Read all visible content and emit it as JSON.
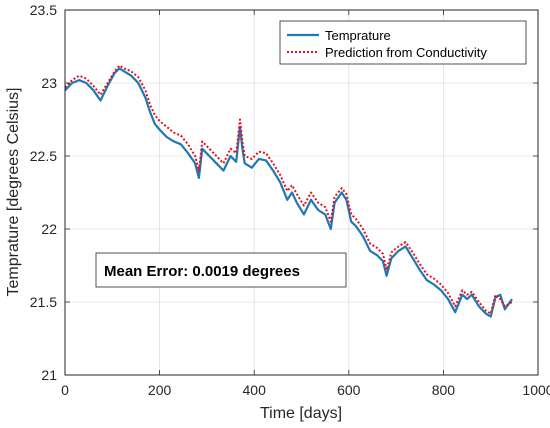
{
  "chart_data": {
    "type": "line",
    "title": "",
    "xlabel": "Time [days]",
    "ylabel": "Temprature [degrees Celsius]",
    "xlim": [
      0,
      1000
    ],
    "ylim": [
      21,
      23.5
    ],
    "xticks": [
      "0",
      "200",
      "400",
      "600",
      "800",
      "1000"
    ],
    "yticks": [
      "21",
      "21.5",
      "22",
      "22.5",
      "23",
      "23.5"
    ],
    "grid": true,
    "legend_position": "top-right",
    "series": [
      {
        "name": "Temprature",
        "color": "#1f77b4",
        "style": "solid",
        "x": [
          0,
          15,
          30,
          45,
          60,
          75,
          90,
          105,
          115,
          125,
          140,
          155,
          170,
          180,
          190,
          200,
          215,
          230,
          245,
          260,
          275,
          283,
          290,
          305,
          320,
          335,
          350,
          362,
          370,
          375,
          380,
          395,
          410,
          425,
          440,
          455,
          470,
          480,
          490,
          505,
          520,
          535,
          550,
          562,
          570,
          585,
          595,
          605,
          615,
          630,
          645,
          660,
          672,
          680,
          690,
          705,
          720,
          735,
          750,
          765,
          780,
          795,
          810,
          825,
          840,
          850,
          860,
          875,
          890,
          900,
          910,
          920,
          930,
          945
        ],
        "y": [
          22.95,
          23.0,
          23.02,
          23.0,
          22.95,
          22.88,
          22.98,
          23.07,
          23.1,
          23.08,
          23.05,
          23.0,
          22.9,
          22.8,
          22.72,
          22.68,
          22.63,
          22.6,
          22.58,
          22.52,
          22.45,
          22.35,
          22.55,
          22.5,
          22.45,
          22.4,
          22.5,
          22.46,
          22.7,
          22.55,
          22.45,
          22.42,
          22.48,
          22.47,
          22.4,
          22.32,
          22.2,
          22.25,
          22.18,
          22.1,
          22.2,
          22.13,
          22.1,
          22.0,
          22.18,
          22.25,
          22.2,
          22.05,
          22.02,
          21.95,
          21.85,
          21.82,
          21.78,
          21.68,
          21.8,
          21.85,
          21.88,
          21.8,
          21.72,
          21.65,
          21.62,
          21.58,
          21.52,
          21.43,
          21.55,
          21.52,
          21.55,
          21.47,
          21.42,
          21.4,
          21.53,
          21.55,
          21.45,
          21.52
        ]
      },
      {
        "name": "Prediction from Conductivity",
        "color": "#e8101e",
        "style": "dotted",
        "x": [
          0,
          15,
          30,
          45,
          60,
          75,
          90,
          105,
          115,
          125,
          140,
          155,
          170,
          180,
          190,
          200,
          215,
          230,
          245,
          260,
          275,
          283,
          290,
          305,
          320,
          335,
          350,
          362,
          370,
          375,
          380,
          395,
          410,
          425,
          440,
          455,
          470,
          480,
          490,
          505,
          520,
          535,
          550,
          562,
          570,
          585,
          595,
          605,
          615,
          630,
          645,
          660,
          672,
          680,
          690,
          705,
          720,
          735,
          750,
          765,
          780,
          795,
          810,
          825,
          840,
          850,
          860,
          875,
          890,
          900,
          910,
          920,
          930,
          945
        ],
        "y": [
          22.97,
          23.02,
          23.05,
          23.03,
          22.98,
          22.92,
          23.0,
          23.08,
          23.12,
          23.1,
          23.08,
          23.04,
          22.95,
          22.85,
          22.78,
          22.74,
          22.7,
          22.66,
          22.64,
          22.58,
          22.5,
          22.4,
          22.6,
          22.55,
          22.5,
          22.45,
          22.55,
          22.52,
          22.75,
          22.6,
          22.5,
          22.48,
          22.53,
          22.52,
          22.45,
          22.37,
          22.26,
          22.3,
          22.24,
          22.16,
          22.25,
          22.18,
          22.15,
          22.05,
          22.22,
          22.28,
          22.24,
          22.1,
          22.07,
          22.0,
          21.9,
          21.87,
          21.83,
          21.72,
          21.84,
          21.88,
          21.91,
          21.84,
          21.76,
          21.69,
          21.66,
          21.62,
          21.56,
          21.47,
          21.58,
          21.55,
          21.57,
          21.5,
          21.44,
          21.42,
          21.55,
          21.52,
          21.47,
          21.5
        ]
      }
    ],
    "annotation": "Mean Error: 0.0019 degrees"
  }
}
